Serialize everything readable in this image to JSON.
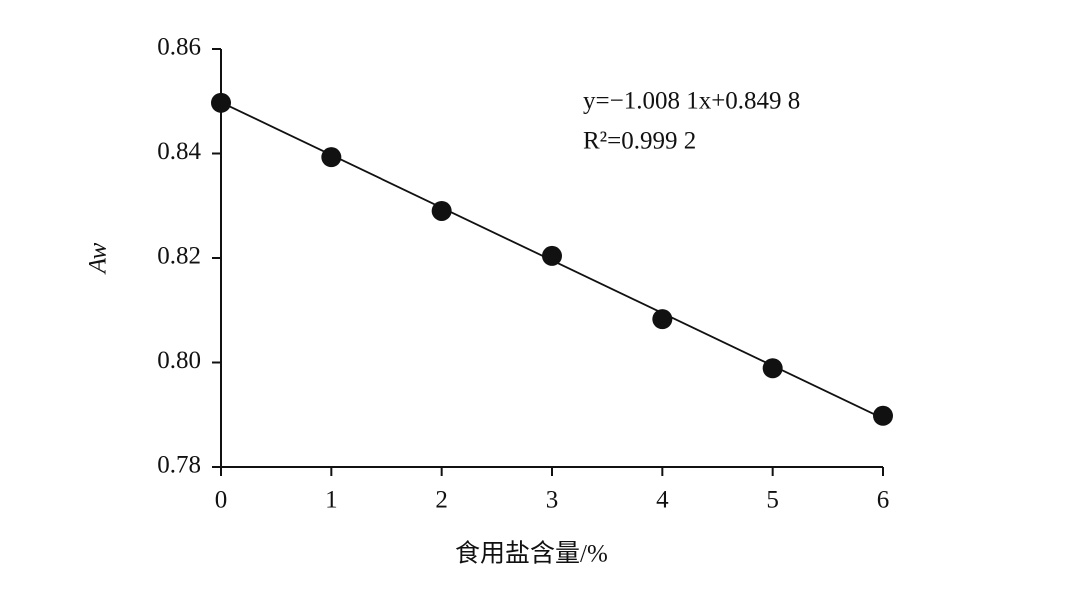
{
  "chart_data": {
    "type": "scatter",
    "x_label": "食用盐含量/%",
    "y_label": "Aw",
    "annotations": [
      "y=−1.008 1x+0.849 8",
      "R²=0.999 2"
    ],
    "x": [
      0,
      1,
      2,
      3,
      4,
      5,
      6
    ],
    "values": [
      0.8497,
      0.8393,
      0.829,
      0.8204,
      0.8083,
      0.7989,
      0.7898
    ],
    "color": "#111111",
    "trendline": {
      "x": [
        0,
        6
      ],
      "values": [
        0.8498,
        0.7893
      ]
    },
    "xlim": [
      0,
      6
    ],
    "xticks": [
      0,
      1,
      2,
      3,
      4,
      5,
      6
    ],
    "ylim": [
      0.78,
      0.86
    ],
    "yticks": [
      0.78,
      {
        "value": 0.8,
        "label": "0.80"
      },
      0.82,
      0.84,
      0.86
    ],
    "grid": false
  }
}
